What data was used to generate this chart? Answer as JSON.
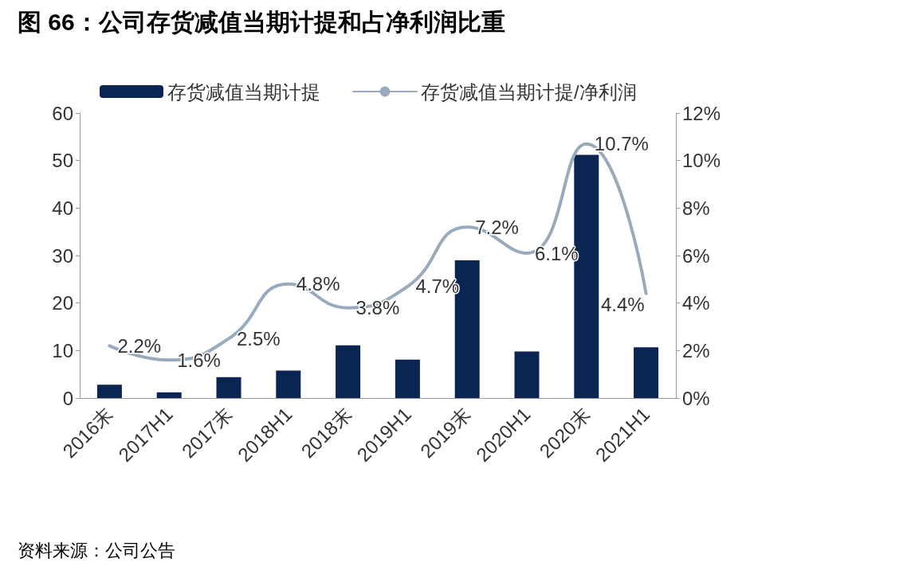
{
  "chart_data": {
    "type": "bar",
    "title": "图 66：公司存货减值当期计提和占净利润比重",
    "categories": [
      "2016末",
      "2017H1",
      "2017末",
      "2018H1",
      "2018末",
      "2019H1",
      "2019末",
      "2020H1",
      "2020末",
      "2021H1"
    ],
    "series": [
      {
        "name": "存货减值当期计提",
        "type": "bar",
        "color": "#0b2553",
        "values": [
          2.8,
          1.2,
          4.4,
          5.8,
          11.1,
          8.1,
          29,
          9.8,
          51.2,
          10.7
        ]
      },
      {
        "name": "存货减值当期计提/净利润",
        "type": "line",
        "axis": "y2",
        "color": "#98abbd",
        "values": [
          2.2,
          1.6,
          2.5,
          4.8,
          3.8,
          4.7,
          7.2,
          6.1,
          10.7,
          4.4
        ],
        "value_labels": [
          "2.2%",
          "1.6%",
          "2.5%",
          "4.8%",
          "3.8%",
          "4.7%",
          "7.2%",
          "6.1%",
          "10.7%",
          "4.4%"
        ]
      }
    ],
    "ylim": [
      0,
      60
    ],
    "yticks": [
      0,
      10,
      20,
      30,
      40,
      50,
      60
    ],
    "y2lim": [
      0,
      12
    ],
    "y2ticks": [
      {
        "value": 0,
        "label": "0%"
      },
      {
        "value": 2,
        "label": "2%"
      },
      {
        "value": 4,
        "label": "4%"
      },
      {
        "value": 6,
        "label": "6%"
      },
      {
        "value": 8,
        "label": "8%"
      },
      {
        "value": 10,
        "label": "10%"
      },
      {
        "value": 12,
        "label": "12%"
      }
    ],
    "legend": "top",
    "grid": false,
    "marker": "none",
    "line_style": "solid",
    "annotations": [
      "资料来源：公司公告"
    ]
  }
}
